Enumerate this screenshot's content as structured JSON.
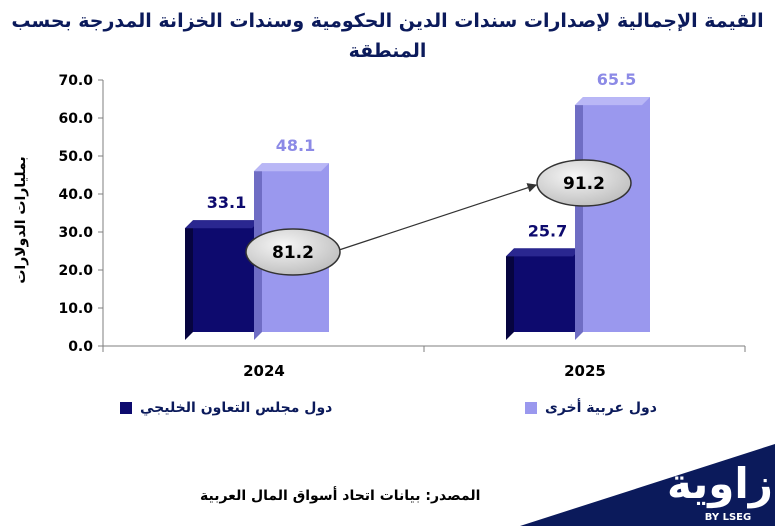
{
  "chart_data": {
    "type": "bar",
    "title": "القيمة الإجمالية لإصدارات سندات الدين الحكومية وسندات الخزانة المدرجة بحسب المنطقة",
    "ylabel": "بمليارات الدولارات",
    "categories": [
      "2024",
      "2025"
    ],
    "series": [
      {
        "name": "دول مجلس التعاون الخليجي",
        "values": [
          33.1,
          25.7
        ],
        "color": "#0d0a6e"
      },
      {
        "name": "دول عربية أخرى",
        "values": [
          48.1,
          65.5
        ],
        "color": "#9a98ee"
      }
    ],
    "totals": [
      81.2,
      91.2
    ],
    "ylim": [
      0,
      70
    ],
    "yticks": [
      "0.0",
      "10.0",
      "20.0",
      "30.0",
      "40.0",
      "50.0",
      "60.0",
      "70.0"
    ],
    "grid": false,
    "legend_position": "bottom"
  },
  "source": "المصدر: بيانات اتحاد أسواق المال العربية",
  "logo": {
    "name": "زاوية",
    "sub": "BY LSEG",
    "color": "#0b1a5b"
  }
}
